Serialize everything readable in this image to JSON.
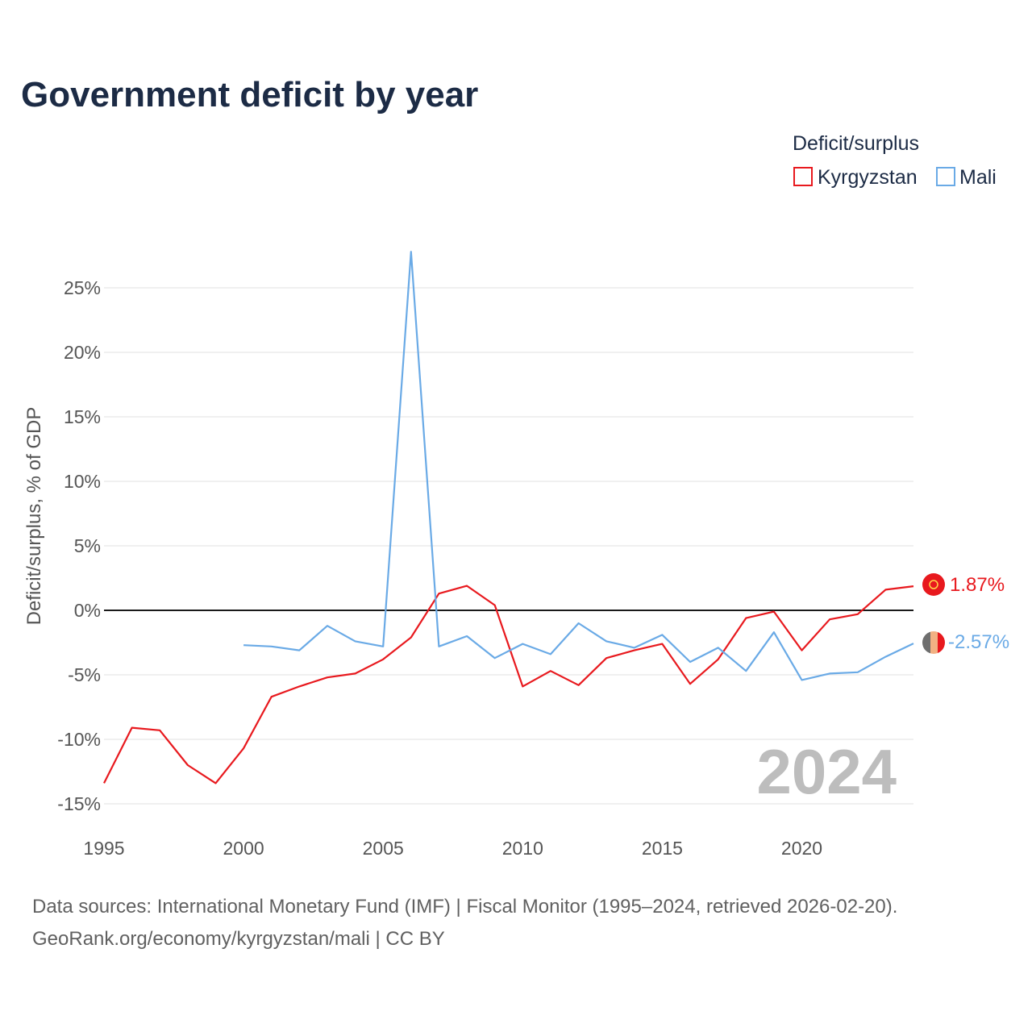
{
  "title": "Government deficit by year",
  "legend": {
    "title": "Deficit/surplus",
    "items": [
      {
        "label": "Kyrgyzstan",
        "color": "#e8191e"
      },
      {
        "label": "Mali",
        "color": "#6aaae6"
      }
    ]
  },
  "year_watermark": "2024",
  "source_line1": "Data sources: International Monetary Fund (IMF) | Fiscal Monitor (1995–2024, retrieved 2026-02-20).",
  "source_line2": "GeoRank.org/economy/kyrgyzstan/mali | CC BY",
  "end_labels": {
    "kyrgyzstan": "1.87%",
    "mali": "-2.57%"
  },
  "icons": {
    "kyrgyzstan": "kyrgyzstan-flag-icon",
    "mali": "mali-flag-icon"
  },
  "chart_data": {
    "type": "line",
    "title": "Government deficit by year",
    "xlabel": "",
    "ylabel": "Deficit/surplus, % of GDP",
    "xlim": [
      1995,
      2024
    ],
    "ylim": [
      -16,
      29
    ],
    "x_ticks": [
      1995,
      2000,
      2005,
      2010,
      2015,
      2020
    ],
    "x_tick_labels": [
      "1995",
      "2000",
      "2005",
      "2010",
      "2015",
      "2020"
    ],
    "y_ticks": [
      -15,
      -10,
      -5,
      0,
      5,
      10,
      15,
      20,
      25
    ],
    "y_tick_labels": [
      "-15%",
      "-10%",
      "-5%",
      "0%",
      "5%",
      "10%",
      "15%",
      "20%",
      "25%"
    ],
    "grid": true,
    "legend_position": "top-right",
    "series": [
      {
        "name": "Kyrgyzstan",
        "color": "#e8191e",
        "x": [
          1995,
          1996,
          1997,
          1998,
          1999,
          2000,
          2001,
          2002,
          2003,
          2004,
          2005,
          2006,
          2007,
          2008,
          2009,
          2010,
          2011,
          2012,
          2013,
          2014,
          2015,
          2016,
          2017,
          2018,
          2019,
          2020,
          2021,
          2022,
          2023,
          2024
        ],
        "values": [
          -13.4,
          -9.1,
          -9.3,
          -12.0,
          -13.4,
          -10.7,
          -6.7,
          -5.9,
          -5.2,
          -4.9,
          -3.8,
          -2.1,
          1.3,
          1.9,
          0.4,
          -5.9,
          -4.7,
          -5.8,
          -3.7,
          -3.1,
          -2.6,
          -5.7,
          -3.8,
          -0.6,
          -0.1,
          -3.1,
          -0.7,
          -0.3,
          1.6,
          1.87
        ]
      },
      {
        "name": "Mali",
        "color": "#6aaae6",
        "x": [
          2000,
          2001,
          2002,
          2003,
          2004,
          2005,
          2006,
          2007,
          2008,
          2009,
          2010,
          2011,
          2012,
          2013,
          2014,
          2015,
          2016,
          2017,
          2018,
          2019,
          2020,
          2021,
          2022,
          2023,
          2024
        ],
        "values": [
          -2.7,
          -2.8,
          -3.1,
          -1.2,
          -2.4,
          -2.8,
          27.8,
          -2.8,
          -2.0,
          -3.7,
          -2.6,
          -3.4,
          -1.0,
          -2.4,
          -2.9,
          -1.9,
          -4.0,
          -2.9,
          -4.7,
          -1.7,
          -5.4,
          -4.9,
          -4.8,
          -3.6,
          -2.57
        ]
      }
    ]
  }
}
